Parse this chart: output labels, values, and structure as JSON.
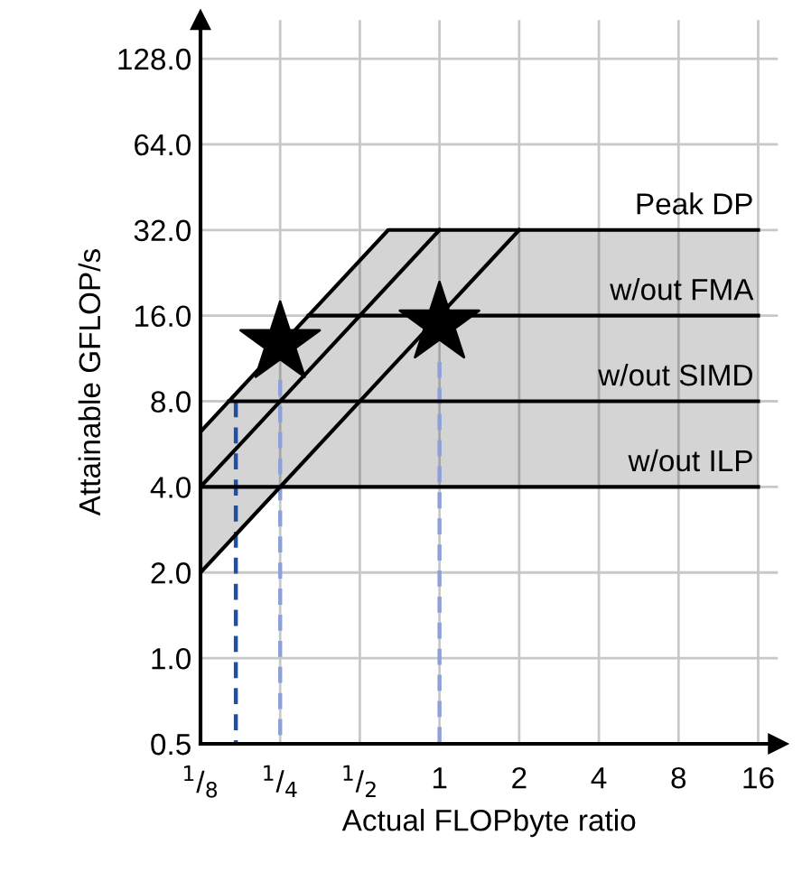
{
  "chart_data": {
    "type": "line",
    "xlabel": "Actual FLOPbyte ratio",
    "ylabel": "Attainable GFLOP/s",
    "log": "xy",
    "grid": true,
    "legend": false,
    "xlim": [
      0.125,
      19
    ],
    "ylim": [
      0.5,
      175
    ],
    "xticks": [
      {
        "value": 0.125,
        "label": "$^{1}$/$_{8}$"
      },
      {
        "value": 0.25,
        "label": "$^{1}$/$_{4}$"
      },
      {
        "value": 0.5,
        "label": "$^{1}$/$_{2}$"
      },
      1,
      2,
      4,
      8,
      16
    ],
    "yticks": [
      {
        "value": 0.5,
        "label": "0.5"
      },
      {
        "value": 1,
        "label": "1.0"
      },
      {
        "value": 2,
        "label": "2.0"
      },
      {
        "value": 4,
        "label": "4.0"
      },
      {
        "value": 8,
        "label": "8.0"
      },
      {
        "value": 16,
        "label": "16.0"
      },
      {
        "value": 32,
        "label": "32.0"
      },
      {
        "value": 64,
        "label": "64.0"
      },
      {
        "value": 128,
        "label": "128.0"
      }
    ],
    "series": [
      {
        "type": "line",
        "color": "#1f4fa0",
        "line_style": "dashed",
        "x": [
          0.17,
          0.17
        ],
        "values": [
          8,
          0.5
        ]
      },
      {
        "type": "line",
        "color": "#8ea0d8",
        "line_style": "dashed",
        "x": [
          0.25,
          0.25
        ],
        "values": [
          9.5,
          0.5
        ]
      },
      {
        "type": "line",
        "color": "#8ea0d8",
        "line_style": "dashed",
        "x": [
          1,
          1
        ],
        "values": [
          11,
          0.5
        ]
      },
      {
        "name": "Peak DP",
        "color": "#000000",
        "x": [
          0.125,
          0.25,
          0.64,
          16
        ],
        "values": [
          6.25,
          12.5,
          32,
          32
        ],
        "lower": [
          2,
          4,
          4,
          4
        ],
        "upper": [
          6.25,
          12.5,
          32,
          32
        ]
      },
      {
        "color": "#000000",
        "x": [
          0.125,
          1
        ],
        "values": [
          4,
          32
        ]
      },
      {
        "color": "#000000",
        "x": [
          0.125,
          2
        ],
        "values": [
          2,
          32
        ]
      },
      {
        "name": "w/out FMA",
        "color": "#000000",
        "x": [
          0.32,
          16
        ],
        "values": [
          16,
          16
        ]
      },
      {
        "name": "w/out SIMD",
        "color": "#000000",
        "x": [
          0.16,
          16
        ],
        "values": [
          8,
          8
        ]
      },
      {
        "name": "w/out ILP",
        "color": "#000000",
        "x": [
          0.125,
          16
        ],
        "values": [
          4,
          4
        ]
      },
      {
        "type": "scatter",
        "marker": "star",
        "color": "#000000",
        "x": [
          0.25,
          1
        ],
        "values": [
          12.8,
          15
        ]
      }
    ]
  }
}
